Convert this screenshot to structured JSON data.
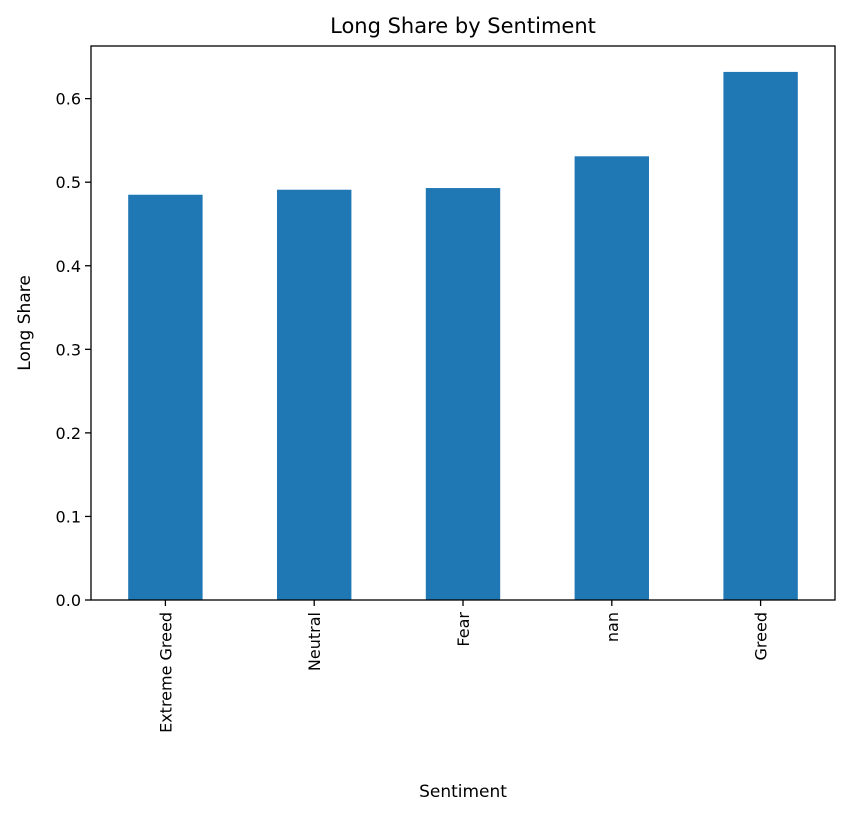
{
  "chart_data": {
    "type": "bar",
    "title": "Long Share by Sentiment",
    "xlabel": "Sentiment",
    "ylabel": "Long Share",
    "categories": [
      "Extreme Greed",
      "Neutral",
      "Fear",
      "nan",
      "Greed"
    ],
    "values": [
      0.485,
      0.491,
      0.493,
      0.531,
      0.632
    ],
    "ylim": [
      0,
      0.663
    ],
    "yticks": [
      0.0,
      0.1,
      0.2,
      0.3,
      0.4,
      0.5,
      0.6
    ],
    "ytick_labels": [
      "0.0",
      "0.1",
      "0.2",
      "0.3",
      "0.4",
      "0.5",
      "0.6"
    ],
    "grid": false,
    "legend": "none",
    "x_tick_rotation": "vertical",
    "bar_color": "#1f77b4"
  }
}
